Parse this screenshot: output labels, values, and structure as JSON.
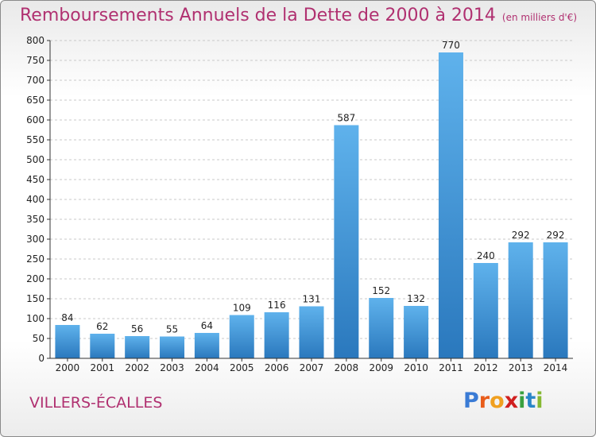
{
  "title": "Remboursements Annuels de la Dette de 2000 à 2014",
  "unit": "(en milliers d'€)",
  "commune": "VILLERS-ÉCALLES",
  "logo": {
    "letters": [
      "P",
      "r",
      "o",
      "x",
      "i",
      "t",
      "i"
    ],
    "colors": [
      "#3a7bd5",
      "#e85c1a",
      "#f0a020",
      "#d02020",
      "#3aa040",
      "#2a86c8",
      "#86b832"
    ]
  },
  "colors": {
    "title": "#b03070",
    "bar": "#4a9fe0",
    "bar_dark": "#2f7fc4",
    "axis": "#333333",
    "grid": "#c8c8c8"
  },
  "chart_data": {
    "type": "bar",
    "categories": [
      "2000",
      "2001",
      "2002",
      "2003",
      "2004",
      "2005",
      "2006",
      "2007",
      "2008",
      "2009",
      "2010",
      "2011",
      "2012",
      "2013",
      "2014"
    ],
    "values": [
      84,
      62,
      56,
      55,
      64,
      109,
      116,
      131,
      587,
      152,
      132,
      770,
      240,
      292,
      292
    ],
    "ylim": [
      0,
      800
    ],
    "yticks": [
      0,
      50,
      100,
      150,
      200,
      250,
      300,
      350,
      400,
      450,
      500,
      550,
      600,
      650,
      700,
      750,
      800
    ],
    "grid": true
  }
}
